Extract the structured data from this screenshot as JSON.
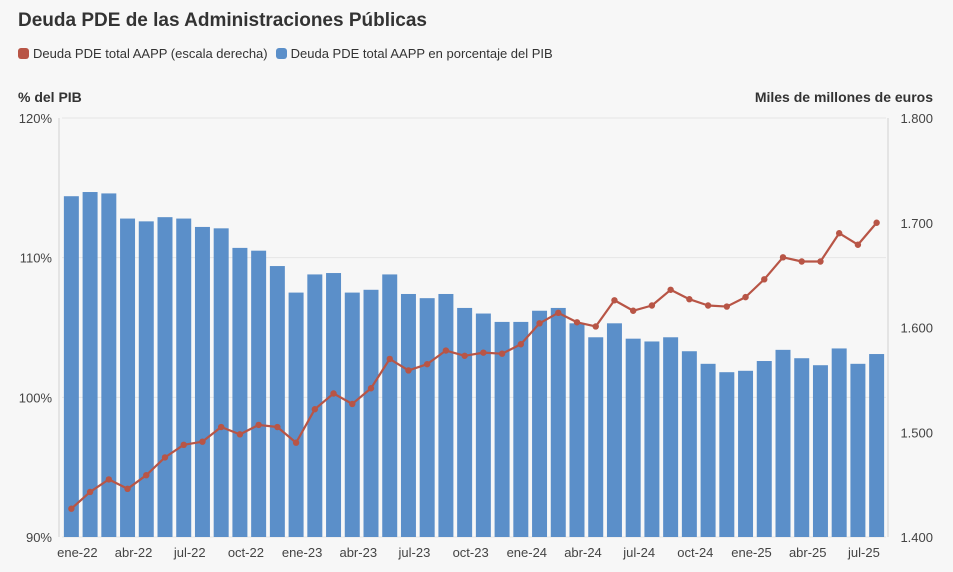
{
  "title": "Deuda PDE de las Administraciones Públicas",
  "legend": {
    "line_label": "Deuda PDE total AAPP (escala derecha)",
    "bar_label": "Deuda PDE total AAPP en porcentaje del PIB"
  },
  "axes": {
    "left_title": "% del PIB",
    "right_title": "Miles de millones de euros"
  },
  "colors": {
    "bar": "#5b8fc9",
    "line": "#b85546",
    "grid": "#e6e6e6"
  },
  "chart_data": {
    "type": "bar",
    "title": "Deuda PDE de las Administraciones Públicas",
    "y_left": {
      "label": "% del PIB",
      "lim": [
        90,
        120
      ],
      "ticks": [
        "90%",
        "100%",
        "110%",
        "120%"
      ],
      "tick_values": [
        90,
        100,
        110,
        120
      ]
    },
    "y_right": {
      "label": "Miles de millones de euros",
      "lim": [
        1400,
        1800
      ],
      "ticks": [
        "1.400",
        "1.500",
        "1.600",
        "1.700",
        "1.800"
      ],
      "tick_values": [
        1400,
        1500,
        1600,
        1700,
        1800
      ]
    },
    "x_tick_labels": [
      "ene-22",
      "abr-22",
      "jul-22",
      "oct-22",
      "ene-23",
      "abr-23",
      "jul-23",
      "oct-23",
      "ene-24",
      "abr-24",
      "jul-24",
      "oct-24",
      "ene-25",
      "abr-25",
      "jul-25"
    ],
    "x_tick_every": 3,
    "series": [
      {
        "name": "Deuda PDE total AAPP en porcentaje del PIB",
        "type": "bar",
        "axis": "left",
        "values": [
          114.4,
          114.7,
          114.6,
          112.8,
          112.6,
          112.9,
          112.8,
          112.2,
          112.1,
          110.7,
          110.5,
          109.4,
          107.5,
          108.8,
          108.9,
          107.5,
          107.7,
          108.8,
          107.4,
          107.1,
          107.4,
          106.4,
          106.0,
          105.4,
          105.4,
          106.2,
          106.4,
          105.3,
          104.3,
          105.3,
          104.2,
          104.0,
          104.3,
          103.3,
          102.4,
          101.8,
          101.9,
          102.6,
          103.4,
          102.8,
          102.3,
          103.5,
          102.4,
          103.1
        ]
      },
      {
        "name": "Deuda PDE total AAPP (escala derecha)",
        "type": "line",
        "axis": "right",
        "values": [
          1427,
          1443,
          1455,
          1446,
          1459,
          1476,
          1488,
          1491,
          1505,
          1498,
          1507,
          1505,
          1490,
          1522,
          1537,
          1527,
          1542,
          1570,
          1559,
          1565,
          1578,
          1573,
          1576,
          1575,
          1584,
          1604,
          1614,
          1605,
          1601,
          1626,
          1616,
          1621,
          1636,
          1627,
          1621,
          1620,
          1629,
          1646,
          1667,
          1663,
          1663,
          1690,
          1679,
          1700
        ]
      }
    ]
  }
}
